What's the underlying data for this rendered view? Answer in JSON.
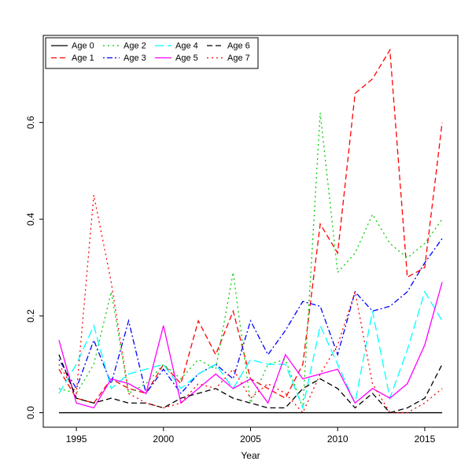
{
  "chart_data": {
    "type": "line",
    "title": "",
    "xlabel": "Year",
    "ylabel": "",
    "grid": false,
    "legend_position": "top-left",
    "legend_columns": 4,
    "x": [
      1994,
      1995,
      1996,
      1997,
      1998,
      1999,
      2000,
      2001,
      2002,
      2003,
      2004,
      2005,
      2006,
      2007,
      2008,
      2009,
      2010,
      2011,
      2012,
      2013,
      2014,
      2015,
      2016
    ],
    "xticks": [
      1995,
      2000,
      2005,
      2010,
      2015
    ],
    "yticks": [
      0.0,
      0.2,
      0.4,
      0.6
    ],
    "ytick_labels": [
      "0.0",
      "0.2",
      "0.4",
      "0.6"
    ],
    "xlim": [
      1993.1,
      2016.9
    ],
    "ylim": [
      -0.03,
      0.78
    ],
    "axis_color": "#000000",
    "series": [
      {
        "name": "Age 0",
        "color": "#000000",
        "dash": "",
        "values": [
          0.0,
          0.0,
          0.0,
          0.0,
          0.0,
          0.0,
          0.0,
          0.0,
          0.0,
          0.0,
          0.0,
          0.0,
          0.0,
          0.0,
          0.0,
          0.0,
          0.0,
          0.0,
          0.0,
          0.0,
          0.0,
          0.0,
          0.0
        ]
      },
      {
        "name": "Age 1",
        "color": "#FF0000",
        "dash": "7,4",
        "values": [
          0.09,
          0.03,
          0.02,
          0.07,
          0.05,
          0.04,
          0.1,
          0.06,
          0.19,
          0.12,
          0.21,
          0.07,
          0.05,
          0.03,
          0.1,
          0.39,
          0.33,
          0.66,
          0.69,
          0.75,
          0.28,
          0.3,
          0.6
        ]
      },
      {
        "name": "Age 2",
        "color": "#00CC00",
        "dash": "2,4",
        "values": [
          0.05,
          0.04,
          0.1,
          0.25,
          0.04,
          0.06,
          0.1,
          0.07,
          0.11,
          0.09,
          0.29,
          0.02,
          0.1,
          0.11,
          0.01,
          0.62,
          0.29,
          0.33,
          0.41,
          0.35,
          0.32,
          0.35,
          0.4
        ]
      },
      {
        "name": "Age 3",
        "color": "#0000FF",
        "dash": "2,3,7,3",
        "values": [
          0.11,
          0.05,
          0.15,
          0.06,
          0.19,
          0.04,
          0.09,
          0.04,
          0.08,
          0.1,
          0.07,
          0.19,
          0.12,
          0.17,
          0.23,
          0.22,
          0.12,
          0.25,
          0.21,
          0.22,
          0.25,
          0.31,
          0.36
        ]
      },
      {
        "name": "Age 4",
        "color": "#00FFFF",
        "dash": "11,5",
        "values": [
          0.04,
          0.1,
          0.18,
          0.05,
          0.08,
          0.09,
          0.1,
          0.05,
          0.08,
          0.1,
          0.05,
          0.11,
          0.1,
          0.1,
          0.01,
          0.18,
          0.1,
          0.02,
          0.21,
          0.03,
          0.13,
          0.25,
          0.19
        ]
      },
      {
        "name": "Age 5",
        "color": "#FF00FF",
        "dash": "",
        "values": [
          0.15,
          0.02,
          0.01,
          0.07,
          0.06,
          0.04,
          0.18,
          0.02,
          0.05,
          0.08,
          0.05,
          0.07,
          0.02,
          0.12,
          0.07,
          0.08,
          0.09,
          0.02,
          0.05,
          0.03,
          0.06,
          0.14,
          0.27
        ]
      },
      {
        "name": "Age 6",
        "color": "#000000",
        "dash": "7,4",
        "values": [
          0.12,
          0.03,
          0.02,
          0.03,
          0.02,
          0.02,
          0.01,
          0.03,
          0.04,
          0.05,
          0.03,
          0.02,
          0.01,
          0.01,
          0.05,
          0.07,
          0.05,
          0.01,
          0.04,
          0.0,
          0.01,
          0.03,
          0.1
        ]
      },
      {
        "name": "Age 7",
        "color": "#FF0000",
        "dash": "2,4",
        "values": [
          0.1,
          0.04,
          0.45,
          0.27,
          0.04,
          0.02,
          0.01,
          0.02,
          0.06,
          0.05,
          0.09,
          0.03,
          0.06,
          0.04,
          0.0,
          0.08,
          0.14,
          0.25,
          0.06,
          0.0,
          0.0,
          0.02,
          0.05
        ]
      }
    ]
  }
}
